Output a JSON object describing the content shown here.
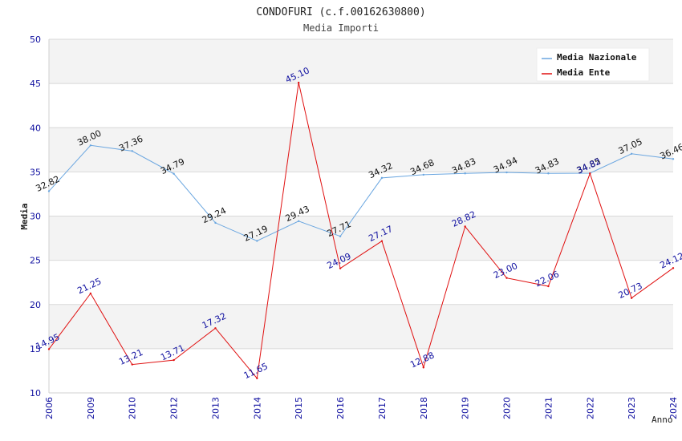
{
  "chart_data": {
    "type": "line",
    "title": "CONDOFURI (c.f.00162630800)",
    "subtitle": "Media Importi",
    "xlabel": "Anno",
    "ylabel": "Media",
    "ylim": [
      10,
      50
    ],
    "yticks": [
      10,
      15,
      20,
      25,
      30,
      35,
      40,
      45,
      50
    ],
    "categories": [
      "2006",
      "2009",
      "2010",
      "2012",
      "2013",
      "2014",
      "2015",
      "2016",
      "2017",
      "2018",
      "2019",
      "2020",
      "2021",
      "2022",
      "2023",
      "2024"
    ],
    "series": [
      {
        "name": "Media Nazionale",
        "color": "#6aa6e0",
        "values": [
          32.82,
          38.0,
          37.36,
          34.79,
          29.24,
          27.19,
          29.43,
          27.71,
          34.32,
          34.68,
          34.83,
          34.94,
          34.83,
          34.85,
          37.05,
          36.46
        ],
        "labels": [
          "32.82",
          "38.00",
          "37.36",
          "34.79",
          "29.24",
          "27.19",
          "29.43",
          "27.71",
          "34.32",
          "34.68",
          "34.83",
          "34.94",
          "34.83",
          "34.85",
          "37.05",
          "36.46"
        ]
      },
      {
        "name": "Media Ente",
        "color": "#e01010",
        "values": [
          14.95,
          21.25,
          13.21,
          13.71,
          17.32,
          11.65,
          45.1,
          24.09,
          27.17,
          12.88,
          28.82,
          23.0,
          22.06,
          34.82,
          20.73,
          24.12
        ],
        "labels": [
          "14.95",
          "21.25",
          "13.21",
          "13.71",
          "17.32",
          "11.65",
          "45.10",
          "24.09",
          "27.17",
          "12.88",
          "28.82",
          "23.00",
          "22.06",
          "34.82",
          "20.73",
          "24.12"
        ]
      }
    ],
    "legend_position": "top-right",
    "grid": true
  }
}
